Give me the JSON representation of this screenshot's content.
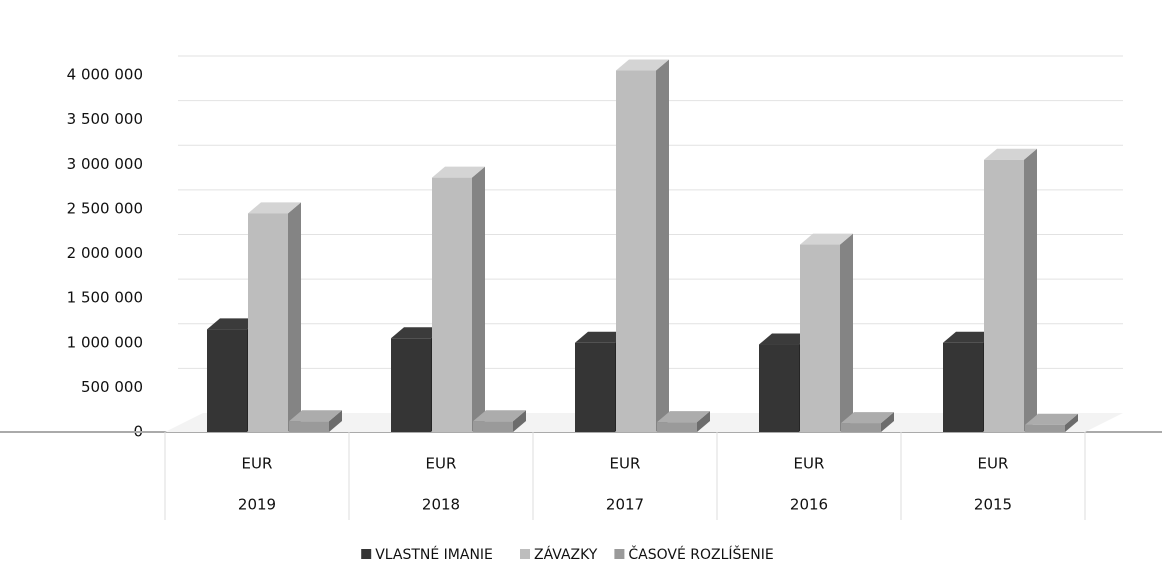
{
  "chart_data": {
    "type": "bar3d",
    "categories": [
      "2019",
      "2018",
      "2017",
      "2016",
      "2015"
    ],
    "category_groups": [
      "EUR",
      "EUR",
      "EUR",
      "EUR",
      "EUR"
    ],
    "series": [
      {
        "name": "VLASTNÉ IMANIE",
        "color": "#353535",
        "values": [
          1150000,
          1050000,
          1000000,
          980000,
          1000000
        ]
      },
      {
        "name": "ZÁVAZKY",
        "color": "#bdbdbd",
        "values": [
          2450000,
          2850000,
          4050000,
          2100000,
          3050000
        ]
      },
      {
        "name": "ČASOVÉ ROZLÍŠENIE",
        "color": "#9a9a9a",
        "values": [
          120000,
          120000,
          110000,
          100000,
          80000
        ]
      }
    ],
    "ylim": [
      0,
      4000000
    ],
    "yticks": [
      0,
      {
        "value": 500000,
        "label": "500 000"
      },
      {
        "value": 1000000,
        "label": "1 000 000"
      },
      {
        "value": 1500000,
        "label": "1 500 000"
      },
      {
        "value": 2000000,
        "label": "2 000 000"
      },
      {
        "value": 2500000,
        "label": "2 500 000"
      },
      {
        "value": 3000000,
        "label": "3 000 000"
      },
      {
        "value": 3500000,
        "label": "3 500 000"
      },
      {
        "value": 4000000,
        "label": "4 000 000"
      }
    ],
    "grid": true,
    "legend": "bottom"
  }
}
